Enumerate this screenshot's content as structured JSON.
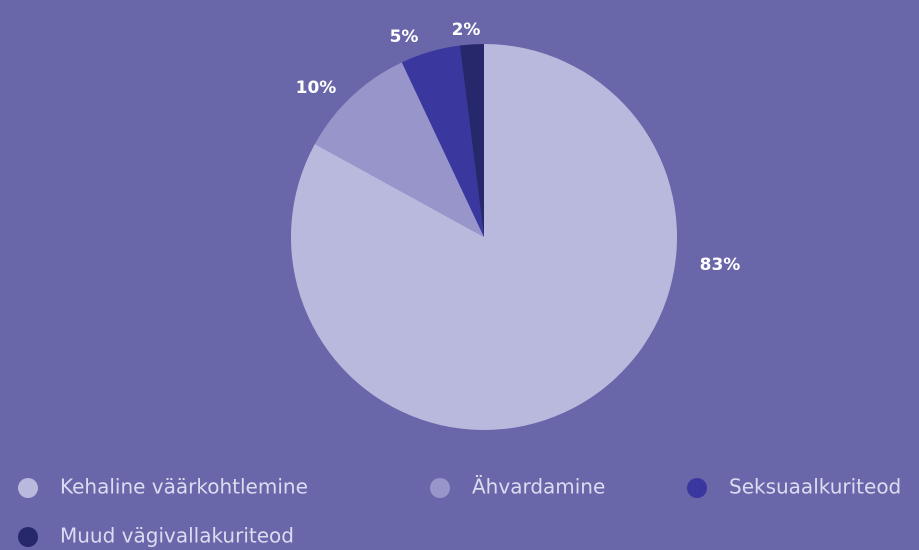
{
  "chart_data": {
    "type": "pie",
    "categories": [
      "Kehaline väärkohtlemine",
      "Ähvardamine",
      "Seksuaalkuriteod",
      "Muud vägivallakuriteod"
    ],
    "values": [
      83,
      10,
      5,
      2
    ],
    "value_labels": [
      "83%",
      "10%",
      "5%",
      "2%"
    ],
    "colors": [
      "#b9b9de",
      "#9895ca",
      "#3a389f",
      "#27276b"
    ],
    "legend": "bottom"
  }
}
